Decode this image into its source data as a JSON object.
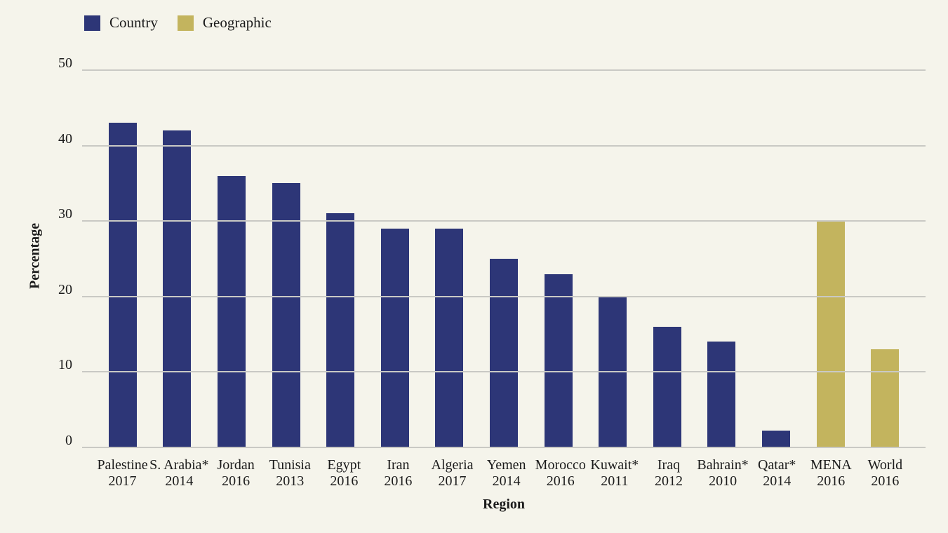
{
  "page": {
    "background_color": "#f5f4eb",
    "text_color": "#1b1b1b",
    "gridline_color": "#c9c9c4"
  },
  "legend": {
    "items": [
      {
        "label": "Country",
        "color": "#2d3677"
      },
      {
        "label": "Geographic",
        "color": "#c3b45e"
      }
    ]
  },
  "chart_data": {
    "type": "bar",
    "title": "",
    "xlabel": "Region",
    "ylabel": "Percentage",
    "ylim": [
      0,
      50
    ],
    "yticks": [
      0,
      10,
      20,
      30,
      40,
      50
    ],
    "grid": "horizontal",
    "legend_position": "top-left",
    "series_colors": {
      "Country": "#2d3677",
      "Geographic": "#c3b45e"
    },
    "bars": [
      {
        "name": "Palestine",
        "year": "2017",
        "value": 43,
        "series": "Country"
      },
      {
        "name": "S. Arabia*",
        "year": "2014",
        "value": 42,
        "series": "Country"
      },
      {
        "name": "Jordan",
        "year": "2016",
        "value": 36,
        "series": "Country"
      },
      {
        "name": "Tunisia",
        "year": "2013",
        "value": 35,
        "series": "Country"
      },
      {
        "name": "Egypt",
        "year": "2016",
        "value": 31,
        "series": "Country"
      },
      {
        "name": "Iran",
        "year": "2016",
        "value": 29,
        "series": "Country"
      },
      {
        "name": "Algeria",
        "year": "2017",
        "value": 29,
        "series": "Country"
      },
      {
        "name": "Yemen",
        "year": "2014",
        "value": 25,
        "series": "Country"
      },
      {
        "name": "Morocco",
        "year": "2016",
        "value": 23,
        "series": "Country"
      },
      {
        "name": "Kuwait*",
        "year": "2011",
        "value": 20,
        "series": "Country"
      },
      {
        "name": "Iraq",
        "year": "2012",
        "value": 16,
        "series": "Country"
      },
      {
        "name": "Bahrain*",
        "year": "2010",
        "value": 14,
        "series": "Country"
      },
      {
        "name": "Qatar*",
        "year": "2014",
        "value": 2.2,
        "series": "Country"
      },
      {
        "name": "MENA",
        "year": "2016",
        "value": 30,
        "series": "Geographic"
      },
      {
        "name": "World",
        "year": "2016",
        "value": 13,
        "series": "Geographic"
      }
    ]
  }
}
